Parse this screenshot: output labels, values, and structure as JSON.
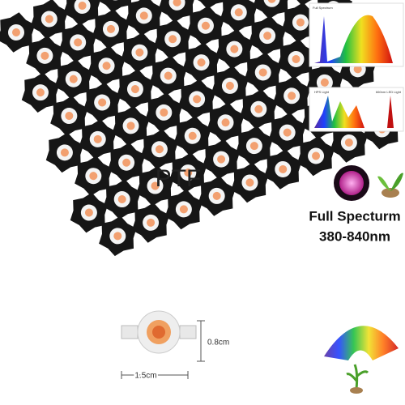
{
  "watermark": "PTF",
  "spectrum_charts": [
    {
      "label": "Full Spectrum"
    },
    {
      "label": "HPS Light"
    },
    {
      "label": "660nm LED Light"
    }
  ],
  "feature": {
    "title": "Full Specturm",
    "range": "380-840nm"
  },
  "dimensions": {
    "height": "0.8cm",
    "width": "1.5cm"
  }
}
